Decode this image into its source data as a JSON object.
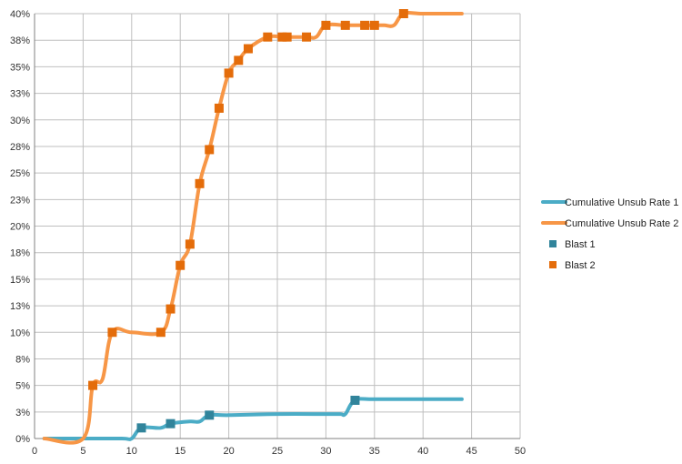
{
  "chart_data": {
    "type": "line",
    "title": "",
    "xlabel": "",
    "ylabel": "",
    "xlim": [
      0,
      50
    ],
    "ylim": [
      0,
      40
    ],
    "x_ticks": [
      0,
      5,
      10,
      15,
      20,
      25,
      30,
      35,
      40,
      45,
      50
    ],
    "y_ticks": [
      0,
      2.5,
      5,
      7.5,
      10,
      12.5,
      15,
      17.5,
      20,
      22.5,
      25,
      27.5,
      30,
      32.5,
      35,
      37.5,
      40
    ],
    "y_tick_labels": [
      "0%",
      "3%",
      "5%",
      "8%",
      "10%",
      "13%",
      "15%",
      "18%",
      "20%",
      "23%",
      "25%",
      "28%",
      "30%",
      "33%",
      "35%",
      "38%",
      "40%"
    ],
    "x_tick_labels": [
      "0",
      "5",
      "10",
      "15",
      "20",
      "25",
      "30",
      "35",
      "40",
      "45",
      "50"
    ],
    "grid": "horizontal and vertical",
    "legend_position": "right",
    "series": [
      {
        "name": "Cumulative Unsub Rate 1",
        "kind": "line",
        "color": "#4BACC6",
        "points": [
          [
            1,
            0
          ],
          [
            5,
            0
          ],
          [
            9,
            0
          ],
          [
            10,
            0
          ],
          [
            11,
            1.0
          ],
          [
            13,
            1.0
          ],
          [
            14,
            1.4
          ],
          [
            16,
            1.6
          ],
          [
            17,
            1.6
          ],
          [
            18,
            2.2
          ],
          [
            20,
            2.2
          ],
          [
            25,
            2.3
          ],
          [
            30,
            2.3
          ],
          [
            31.5,
            2.3
          ],
          [
            32,
            2.3
          ],
          [
            33,
            3.6
          ],
          [
            35,
            3.7
          ],
          [
            40,
            3.7
          ],
          [
            44,
            3.7
          ]
        ]
      },
      {
        "name": "Cumulative Unsub Rate 2",
        "kind": "line",
        "color": "#F79646",
        "points": [
          [
            1,
            0
          ],
          [
            5,
            0
          ],
          [
            6,
            5.0
          ],
          [
            7,
            5.6
          ],
          [
            8,
            10.0
          ],
          [
            10,
            10.0
          ],
          [
            13,
            10.0
          ],
          [
            14,
            12.2
          ],
          [
            15,
            16.3
          ],
          [
            16,
            18.3
          ],
          [
            17,
            24.0
          ],
          [
            18,
            27.2
          ],
          [
            19,
            31.1
          ],
          [
            20,
            34.4
          ],
          [
            21,
            35.6
          ],
          [
            22,
            36.7
          ],
          [
            24,
            37.8
          ],
          [
            25.5,
            37.8
          ],
          [
            26,
            37.8
          ],
          [
            28,
            37.8
          ],
          [
            29,
            37.8
          ],
          [
            30,
            38.9
          ],
          [
            32,
            38.9
          ],
          [
            34,
            38.9
          ],
          [
            35,
            38.9
          ],
          [
            36,
            38.9
          ],
          [
            37,
            38.9
          ],
          [
            38,
            40.0
          ],
          [
            40,
            40.0
          ],
          [
            44,
            40.0
          ]
        ]
      },
      {
        "name": "Blast 1",
        "kind": "marker",
        "color": "#31849B",
        "points": [
          [
            11,
            1.0
          ],
          [
            14,
            1.4
          ],
          [
            18,
            2.2
          ],
          [
            33,
            3.6
          ]
        ]
      },
      {
        "name": "Blast 2",
        "kind": "marker",
        "color": "#E46C0A",
        "points": [
          [
            6,
            5.0
          ],
          [
            8,
            10.0
          ],
          [
            13,
            10.0
          ],
          [
            14,
            12.2
          ],
          [
            15,
            16.3
          ],
          [
            16,
            18.3
          ],
          [
            17,
            24.0
          ],
          [
            18,
            27.2
          ],
          [
            19,
            31.1
          ],
          [
            20,
            34.4
          ],
          [
            21,
            35.6
          ],
          [
            22,
            36.7
          ],
          [
            24,
            37.8
          ],
          [
            25.5,
            37.8
          ],
          [
            26,
            37.8
          ],
          [
            28,
            37.8
          ],
          [
            30,
            38.9
          ],
          [
            32,
            38.9
          ],
          [
            34,
            38.9
          ],
          [
            35,
            38.9
          ],
          [
            38,
            40.0
          ]
        ]
      }
    ]
  }
}
